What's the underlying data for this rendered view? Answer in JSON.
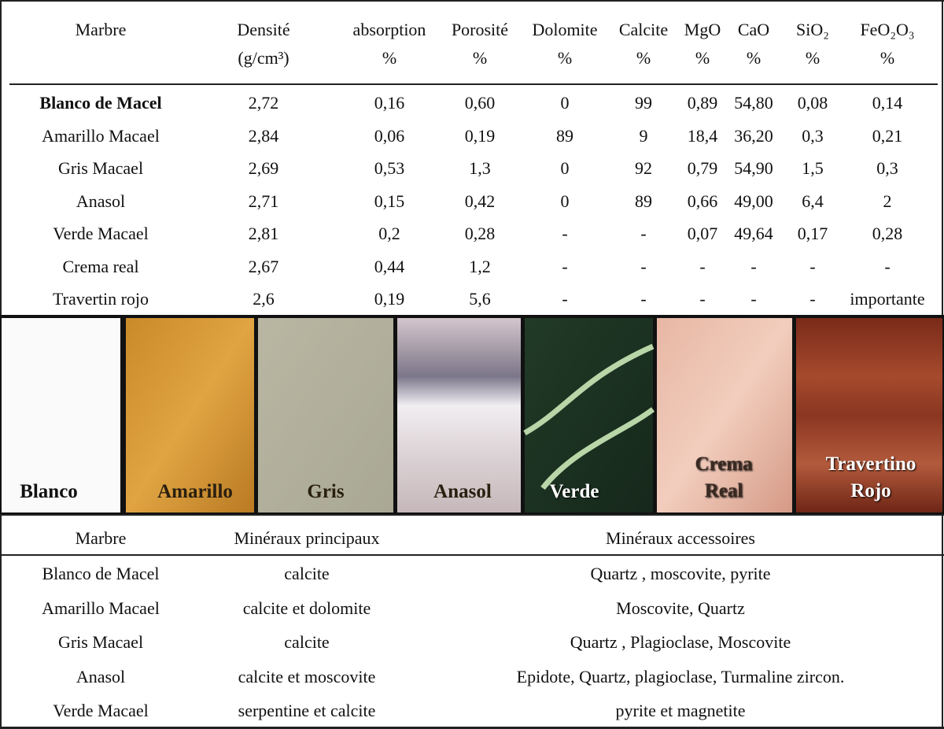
{
  "table": {
    "headers": [
      [
        "Marbre"
      ],
      [
        "Densité",
        "(g/cm³)"
      ],
      [
        "absorption",
        "%"
      ],
      [
        "Porosité",
        "%"
      ],
      [
        "Dolomite",
        "%"
      ],
      [
        "Calcite",
        "%"
      ],
      [
        "MgO",
        "%"
      ],
      [
        "CaO",
        "%"
      ],
      [
        "SiO₂",
        "%"
      ],
      [
        "FeO₂O₃",
        "%"
      ]
    ],
    "rows": [
      [
        "Blanco de Macel",
        "2,72",
        "0,16",
        "0,60",
        "0",
        "99",
        "0,89",
        "54,80",
        "0,08",
        "0,14"
      ],
      [
        "Amarillo Macael",
        "2,84",
        "0,06",
        "0,19",
        "89",
        "9",
        "18,4",
        "36,20",
        "0,3",
        "0,21"
      ],
      [
        "Gris Macael",
        "2,69",
        "0,53",
        "1,3",
        "0",
        "92",
        "0,79",
        "54,90",
        "1,5",
        "0,3"
      ],
      [
        "Anasol",
        "2,71",
        "0,15",
        "0,42",
        "0",
        "89",
        "0,66",
        "49,00",
        "6,4",
        "2"
      ],
      [
        "Verde Macael",
        "2,81",
        "0,2",
        "0,28",
        "-",
        "-",
        "0,07",
        "49,64",
        "0,17",
        "0,28"
      ],
      [
        "Crema real",
        "2,67",
        "0,44",
        "1,2",
        "-",
        "-",
        "-",
        "-",
        "-",
        "-"
      ],
      [
        "Travertin rojo",
        "2,6",
        "0,19",
        "5,6",
        "-",
        "-",
        "-",
        "-",
        "-",
        "importante"
      ]
    ]
  },
  "swatches": [
    [
      "Blanco"
    ],
    [
      "Amarillo"
    ],
    [
      "Gris"
    ],
    [
      "Anasol"
    ],
    [
      "Verde"
    ],
    [
      "Crema",
      "Real"
    ],
    [
      "Travertino",
      "Rojo"
    ]
  ],
  "minerals": {
    "headers": [
      "Marbre",
      "Minéraux principaux",
      "Minéraux accessoires"
    ],
    "rows": [
      [
        "Blanco de Macel",
        "calcite",
        "Quartz , moscovite, pyrite"
      ],
      [
        "Amarillo Macael",
        "calcite et dolomite",
        "Moscovite, Quartz"
      ],
      [
        "Gris Macael",
        "calcite",
        "Quartz , Plagioclase, Moscovite"
      ],
      [
        "Anasol",
        "calcite et moscovite",
        "Epidote, Quartz, plagioclase, Turmaline zircon."
      ],
      [
        "Verde Macael",
        "serpentine et calcite",
        "pyrite et magnetite"
      ]
    ]
  }
}
